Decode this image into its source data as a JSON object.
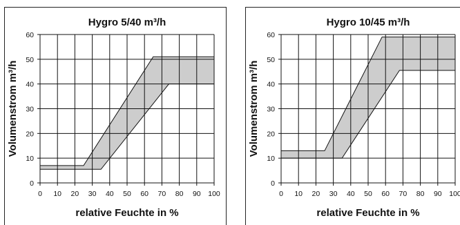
{
  "chart_data": [
    {
      "type": "area",
      "title": "Hygro 5/40 m³/h",
      "xlabel": "relative Feuchte in %",
      "ylabel": "Volumenstrom m³/h",
      "xlim": [
        0,
        100
      ],
      "ylim": [
        0,
        60
      ],
      "x_ticks": [
        0,
        10,
        20,
        30,
        40,
        50,
        60,
        70,
        80,
        90,
        100
      ],
      "y_ticks": [
        0,
        10,
        20,
        30,
        40,
        50,
        60
      ],
      "grid": true,
      "series": [
        {
          "x": [
            0,
            25,
            65,
            100
          ],
          "values": [
            7,
            7,
            51,
            51
          ]
        },
        {
          "x": [
            0,
            35,
            74,
            100
          ],
          "values": [
            5.5,
            5.5,
            40,
            40
          ]
        }
      ]
    },
    {
      "type": "area",
      "title": "Hygro 10/45 m³/h",
      "xlabel": "relative Feuchte in %",
      "ylabel": "Volumenstrom m³/h",
      "xlim": [
        0,
        100
      ],
      "ylim": [
        0,
        60
      ],
      "x_ticks": [
        0,
        10,
        20,
        30,
        40,
        50,
        60,
        70,
        80,
        90,
        100
      ],
      "y_ticks": [
        0,
        10,
        20,
        30,
        40,
        50,
        60
      ],
      "grid": true,
      "series": [
        {
          "x": [
            0,
            25,
            58,
            100
          ],
          "values": [
            13,
            13,
            59,
            59
          ]
        },
        {
          "x": [
            0,
            35,
            68,
            100
          ],
          "values": [
            10,
            10,
            45.5,
            45.5
          ]
        }
      ]
    }
  ]
}
